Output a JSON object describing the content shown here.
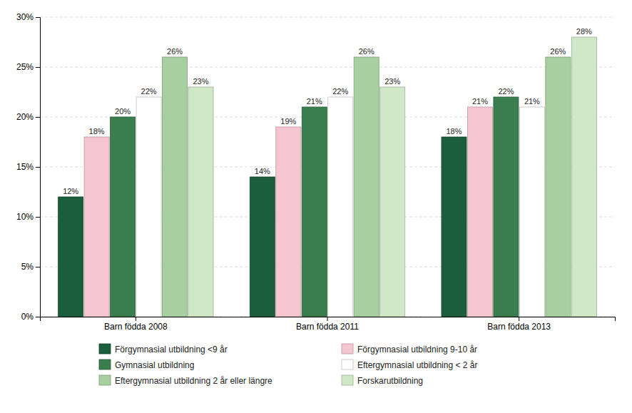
{
  "chart_data": {
    "type": "bar",
    "categories": [
      "Barn födda 2008",
      "Barn födda 2011",
      "Barn födda 2013"
    ],
    "series": [
      {
        "name": "Förgymnasial utbildning <9 år",
        "color": "#1b5e3b",
        "values": [
          12,
          14,
          18
        ],
        "value_labels": [
          "12%",
          "14%",
          "18%"
        ]
      },
      {
        "name": "Förgymnasial utbildning 9-10 år",
        "color": "#f5c6d0",
        "values": [
          18,
          19,
          21
        ],
        "value_labels": [
          "18%",
          "19%",
          "21%"
        ]
      },
      {
        "name": "Gymnasial utbildning",
        "color": "#3a7d4f",
        "values": [
          20,
          21,
          22
        ],
        "value_labels": [
          "20%",
          "21%",
          "22%"
        ]
      },
      {
        "name": "Eftergymnasial utbildning < 2 år",
        "color": "#ffffff",
        "values": [
          22,
          22,
          21
        ],
        "value_labels": [
          "22%",
          "22%",
          "21%"
        ]
      },
      {
        "name": "Eftergymnasial utbildning 2 år eller längre",
        "color": "#a8cfa0",
        "values": [
          26,
          26,
          26
        ],
        "value_labels": [
          "26%",
          "26%",
          "26%"
        ]
      },
      {
        "name": "Forskarutbildning",
        "color": "#d0e8c8",
        "values": [
          23,
          23,
          28
        ],
        "value_labels": [
          "23%",
          "23%",
          "28%"
        ]
      }
    ],
    "ylim": [
      0,
      30
    ],
    "yticks": [
      {
        "value": 0,
        "label": "0%"
      },
      {
        "value": 5,
        "label": "5%"
      },
      {
        "value": 10,
        "label": "10%"
      },
      {
        "value": 15,
        "label": "15%"
      },
      {
        "value": 20,
        "label": "20%"
      },
      {
        "value": 25,
        "label": "25%"
      },
      {
        "value": 30,
        "label": "30%"
      }
    ],
    "grid": true,
    "data_labels": true,
    "legend": "bottom"
  }
}
